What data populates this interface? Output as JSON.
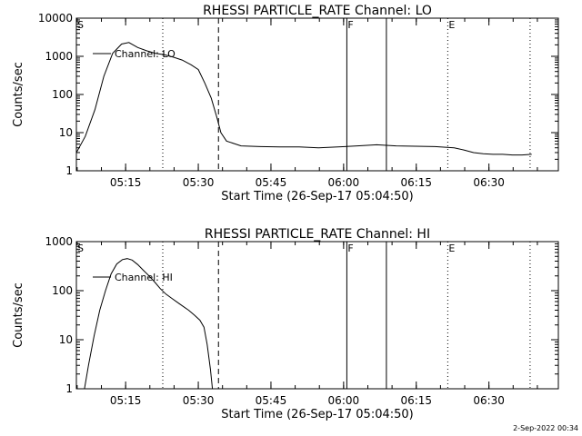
{
  "chart_data": [
    {
      "type": "line",
      "title": "RHESSI PARTICLE_RATE Channel: LO",
      "xlabel": "Start Time (26-Sep-17 05:04:50)",
      "ylabel": "Counts/sec",
      "y_scale": "log",
      "ylim": [
        1,
        10000
      ],
      "xlim": [
        "05:04:50",
        "06:44:20"
      ],
      "x_ticks": [
        "05:15",
        "05:30",
        "05:45",
        "06:00",
        "06:15",
        "06:30"
      ],
      "y_ticks": [
        "1",
        "10",
        "100",
        "1000",
        "10000"
      ],
      "legend": [
        "Channel: LO"
      ],
      "legend_position": "top-left",
      "markers": [
        {
          "time": "05:04:50",
          "style": "dotted",
          "label": "S"
        },
        {
          "time": "05:22:40",
          "style": "dotted",
          "label": ""
        },
        {
          "time": "05:34:10",
          "style": "dashed",
          "label": ""
        },
        {
          "time": "06:00:40",
          "style": "solid",
          "label": "F"
        },
        {
          "time": "06:08:50",
          "style": "solid",
          "label": ""
        },
        {
          "time": "06:21:30",
          "style": "dotted",
          "label": "E"
        },
        {
          "time": "06:38:30",
          "style": "dotted",
          "label": ""
        }
      ],
      "series": [
        {
          "name": "Channel: LO",
          "x": [
            "05:04:50",
            "05:06:40",
            "05:08:40",
            "05:10:30",
            "05:12:20",
            "05:14:10",
            "05:15:40",
            "05:17:30",
            "05:19:20",
            "05:21:10",
            "05:23:00",
            "05:24:50",
            "05:26:40",
            "05:28:30",
            "05:30:00",
            "05:31:20",
            "05:32:40",
            "05:33:50",
            "05:34:40",
            "05:35:50",
            "05:38:50",
            "05:42:50",
            "05:46:50",
            "05:50:50",
            "05:54:50",
            "05:58:50",
            "06:02:50",
            "06:06:50",
            "06:10:50",
            "06:14:50",
            "06:18:50",
            "06:22:50",
            "06:24:50",
            "06:26:50",
            "06:28:50",
            "06:30:50",
            "06:32:50",
            "06:34:50",
            "06:36:50",
            "06:38:50"
          ],
          "values": [
            3,
            8,
            40,
            300,
            1200,
            2100,
            2300,
            1700,
            1400,
            1200,
            1100,
            950,
            800,
            600,
            450,
            200,
            80,
            25,
            10,
            6,
            4.5,
            4.3,
            4.2,
            4.2,
            4.0,
            4.2,
            4.5,
            4.8,
            4.5,
            4.4,
            4.3,
            4.0,
            3.5,
            3.0,
            2.8,
            2.7,
            2.7,
            2.6,
            2.6,
            2.7
          ]
        }
      ]
    },
    {
      "type": "line",
      "title": "RHESSI PARTICLE_RATE Channel: HI",
      "xlabel": "Start Time (26-Sep-17 05:04:50)",
      "ylabel": "Counts/sec",
      "y_scale": "log",
      "ylim": [
        1,
        1000
      ],
      "xlim": [
        "05:04:50",
        "06:44:20"
      ],
      "x_ticks": [
        "05:15",
        "05:30",
        "05:45",
        "06:00",
        "06:15",
        "06:30"
      ],
      "y_ticks": [
        "1",
        "10",
        "100",
        "1000"
      ],
      "legend": [
        "Channel: HI"
      ],
      "legend_position": "top-left",
      "markers": [
        {
          "time": "05:04:50",
          "style": "dotted",
          "label": "S"
        },
        {
          "time": "05:22:40",
          "style": "dotted",
          "label": ""
        },
        {
          "time": "05:34:10",
          "style": "dashed",
          "label": ""
        },
        {
          "time": "06:00:40",
          "style": "solid",
          "label": "F"
        },
        {
          "time": "06:08:50",
          "style": "solid",
          "label": ""
        },
        {
          "time": "06:21:30",
          "style": "dotted",
          "label": "E"
        },
        {
          "time": "06:38:30",
          "style": "dotted",
          "label": ""
        }
      ],
      "series": [
        {
          "name": "Channel: HI",
          "x": [
            "05:06:30",
            "05:07:20",
            "05:08:30",
            "05:09:40",
            "05:10:50",
            "05:12:00",
            "05:13:10",
            "05:14:20",
            "05:15:20",
            "05:16:20",
            "05:17:30",
            "05:18:40",
            "05:19:50",
            "05:21:00",
            "05:22:10",
            "05:23:20",
            "05:24:30",
            "05:25:40",
            "05:26:50",
            "05:28:00",
            "05:29:10",
            "05:30:20",
            "05:31:10",
            "05:31:50",
            "05:32:30",
            "05:32:55"
          ],
          "values": [
            1,
            3,
            12,
            40,
            100,
            220,
            350,
            430,
            450,
            420,
            340,
            260,
            200,
            150,
            110,
            85,
            70,
            58,
            48,
            40,
            32,
            25,
            18,
            8,
            2.5,
            1
          ]
        }
      ]
    }
  ],
  "footer": {
    "timestamp": "2-Sep-2022 00:34"
  }
}
